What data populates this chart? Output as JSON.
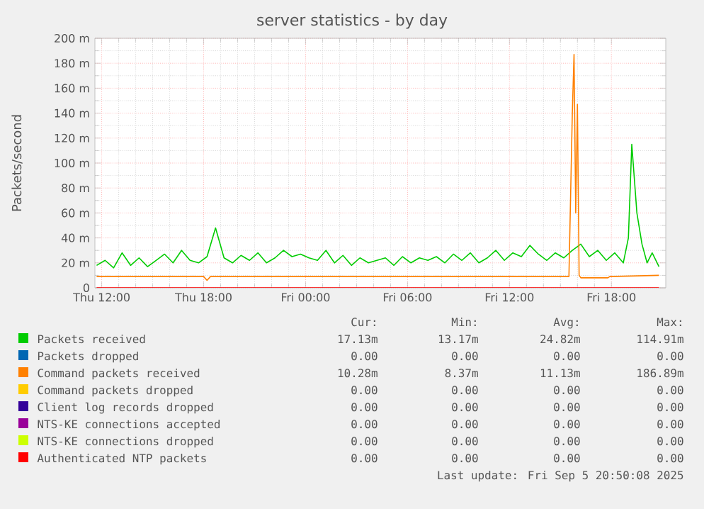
{
  "chart_data": {
    "type": "line",
    "title": "server statistics - by day",
    "ylabel": "Packets/second",
    "xlim": [
      "2025-09-04T11:36",
      "2025-09-05T21:12"
    ],
    "xticks": [
      {
        "value": "2025-09-04T12:00",
        "label": "Thu 12:00"
      },
      {
        "value": "2025-09-04T18:00",
        "label": "Thu 18:00"
      },
      {
        "value": "2025-09-05T00:00",
        "label": "Fri 00:00"
      },
      {
        "value": "2025-09-05T06:00",
        "label": "Fri 06:00"
      },
      {
        "value": "2025-09-05T12:00",
        "label": "Fri 12:00"
      },
      {
        "value": "2025-09-05T18:00",
        "label": "Fri 18:00"
      }
    ],
    "ylim": [
      0,
      200
    ],
    "yticks": [
      0,
      {
        "value": 20,
        "label": "20 m"
      },
      {
        "value": 40,
        "label": "40 m"
      },
      {
        "value": 60,
        "label": "60 m"
      },
      {
        "value": 80,
        "label": "80 m"
      },
      {
        "value": 100,
        "label": "100 m"
      },
      {
        "value": 120,
        "label": "120 m"
      },
      {
        "value": 140,
        "label": "140 m"
      },
      {
        "value": 160,
        "label": "160 m"
      },
      {
        "value": 180,
        "label": "180 m"
      },
      {
        "value": 200,
        "label": "200 m"
      }
    ],
    "grid": true,
    "legend": "bottom",
    "series": [
      {
        "name": "Packets received",
        "color": "#00cc00",
        "x": [
          "2025-09-04T11:42",
          "2025-09-04T12:12",
          "2025-09-04T12:42",
          "2025-09-04T13:12",
          "2025-09-04T13:42",
          "2025-09-04T14:12",
          "2025-09-04T14:42",
          "2025-09-04T15:12",
          "2025-09-04T15:42",
          "2025-09-04T16:12",
          "2025-09-04T16:42",
          "2025-09-04T17:12",
          "2025-09-04T17:42",
          "2025-09-04T18:12",
          "2025-09-04T18:42",
          "2025-09-04T19:12",
          "2025-09-04T19:42",
          "2025-09-04T20:12",
          "2025-09-04T20:42",
          "2025-09-04T21:12",
          "2025-09-04T21:42",
          "2025-09-04T22:12",
          "2025-09-04T22:42",
          "2025-09-04T23:12",
          "2025-09-04T23:42",
          "2025-09-05T00:12",
          "2025-09-05T00:42",
          "2025-09-05T01:12",
          "2025-09-05T01:42",
          "2025-09-05T02:12",
          "2025-09-05T02:42",
          "2025-09-05T03:12",
          "2025-09-05T03:42",
          "2025-09-05T04:12",
          "2025-09-05T04:42",
          "2025-09-05T05:12",
          "2025-09-05T05:42",
          "2025-09-05T06:12",
          "2025-09-05T06:42",
          "2025-09-05T07:12",
          "2025-09-05T07:42",
          "2025-09-05T08:12",
          "2025-09-05T08:42",
          "2025-09-05T09:12",
          "2025-09-05T09:42",
          "2025-09-05T10:12",
          "2025-09-05T10:42",
          "2025-09-05T11:12",
          "2025-09-05T11:42",
          "2025-09-05T12:12",
          "2025-09-05T12:42",
          "2025-09-05T13:12",
          "2025-09-05T13:42",
          "2025-09-05T14:12",
          "2025-09-05T14:42",
          "2025-09-05T15:12",
          "2025-09-05T15:42",
          "2025-09-05T16:12",
          "2025-09-05T16:42",
          "2025-09-05T17:12",
          "2025-09-05T17:42",
          "2025-09-05T18:12",
          "2025-09-05T18:42",
          "2025-09-05T19:00",
          "2025-09-05T19:12",
          "2025-09-05T19:30",
          "2025-09-05T19:48",
          "2025-09-05T20:06",
          "2025-09-05T20:24",
          "2025-09-05T20:48"
        ],
        "values": [
          18,
          22,
          16,
          28,
          18,
          24,
          17,
          22,
          27,
          20,
          30,
          22,
          20,
          25,
          48,
          24,
          20,
          26,
          22,
          28,
          20,
          24,
          30,
          25,
          27,
          24,
          22,
          30,
          20,
          26,
          18,
          24,
          20,
          22,
          24,
          18,
          25,
          20,
          24,
          22,
          25,
          20,
          27,
          22,
          28,
          20,
          24,
          30,
          22,
          28,
          25,
          34,
          27,
          22,
          28,
          24,
          30,
          35,
          25,
          30,
          22,
          28,
          20,
          40,
          115,
          60,
          35,
          20,
          28,
          17
        ]
      },
      {
        "name": "Packets dropped",
        "color": "#0066b3"
      },
      {
        "name": "Command packets received",
        "color": "#ff8000",
        "x": [
          "2025-09-04T11:42",
          "2025-09-04T18:00",
          "2025-09-04T18:12",
          "2025-09-04T18:24",
          "2025-09-05T15:30",
          "2025-09-05T15:42",
          "2025-09-05T15:48",
          "2025-09-05T15:54",
          "2025-09-05T16:00",
          "2025-09-05T16:06",
          "2025-09-05T16:12",
          "2025-09-05T17:48",
          "2025-09-05T17:54",
          "2025-09-05T20:48"
        ],
        "values": [
          9,
          9,
          6,
          9,
          9,
          140,
          187,
          60,
          147,
          10,
          8,
          8,
          9,
          10
        ]
      },
      {
        "name": "Command packets dropped",
        "color": "#ffcc00"
      },
      {
        "name": "Client log records dropped",
        "color": "#330099"
      },
      {
        "name": "NTS-KE connections accepted",
        "color": "#990099"
      },
      {
        "name": "NTS-KE connections dropped",
        "color": "#ccff00"
      },
      {
        "name": "Authenticated NTP packets",
        "color": "#ff0000",
        "x": [
          "2025-09-04T11:42",
          "2025-09-05T20:48"
        ],
        "values": [
          0,
          0
        ]
      }
    ],
    "annotations": [
      "Cur:",
      "Min:",
      "Avg:",
      "Max:",
      "17.13m",
      "13.17m",
      "24.82m",
      "114.91m",
      "0.00",
      "0.00",
      "0.00",
      "0.00",
      "10.28m",
      "8.37m",
      "11.13m",
      "186.89m",
      "0.00",
      "0.00",
      "0.00",
      "0.00",
      "0.00",
      "0.00",
      "0.00",
      "0.00",
      "0.00",
      "0.00",
      "0.00",
      "0.00",
      "0.00",
      "0.00",
      "0.00",
      "0.00",
      "0.00",
      "0.00",
      "0.00",
      "0.00",
      "Last update: Fri Sep  5 20:50:08 2025"
    ]
  }
}
